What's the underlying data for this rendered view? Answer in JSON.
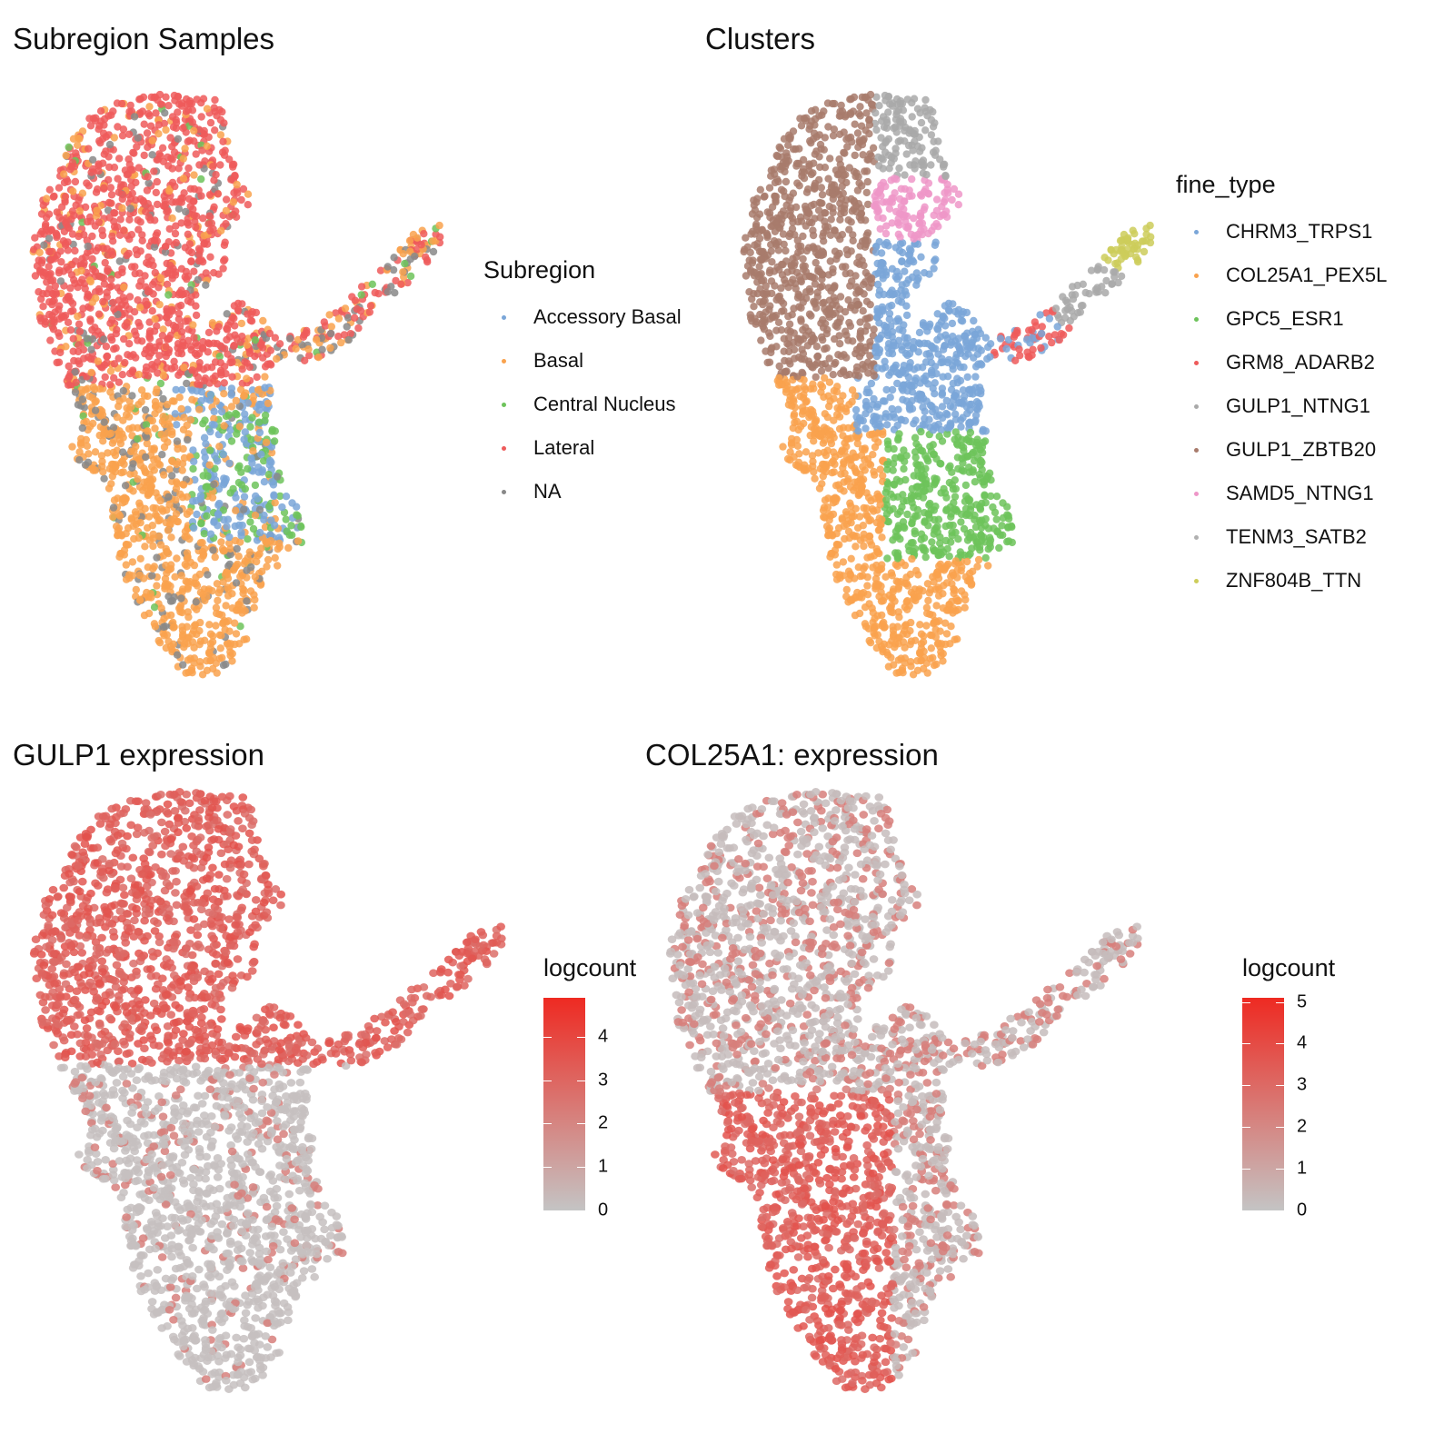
{
  "chart_data": [
    {
      "id": "subregion",
      "type": "scatter",
      "title": "Subregion Samples",
      "legend": {
        "title": "Subregion",
        "placement": "right",
        "entries": [
          {
            "name": "Accessory Basal",
            "color": "#7AA6D8"
          },
          {
            "name": "Basal",
            "color": "#F9A24E"
          },
          {
            "name": "Central Nucleus",
            "color": "#6DC35B"
          },
          {
            "name": "Lateral",
            "color": "#EE5B5B"
          },
          {
            "name": "NA",
            "color": "#888888"
          }
        ]
      }
    },
    {
      "id": "clusters",
      "type": "scatter",
      "title": "Clusters",
      "legend": {
        "title": "fine_type",
        "placement": "right",
        "entries": [
          {
            "name": "CHRM3_TRPS1",
            "color": "#7AA6D8"
          },
          {
            "name": "COL25A1_PEX5L",
            "color": "#F9A24E"
          },
          {
            "name": "GPC5_ESR1",
            "color": "#6DC35B"
          },
          {
            "name": "GRM8_ADARB2",
            "color": "#EE5B5B"
          },
          {
            "name": "GULP1_NTNG1",
            "color": "#A9A9A9"
          },
          {
            "name": "GULP1_ZBTB20",
            "color": "#A87B6C"
          },
          {
            "name": "SAMD5_NTNG1",
            "color": "#EE96C8"
          },
          {
            "name": "TENM3_SATB2",
            "color": "#B0B0B0"
          },
          {
            "name": "ZNF804B_TTN",
            "color": "#CDCD5A"
          }
        ]
      }
    },
    {
      "id": "gulp1",
      "type": "scatter",
      "title": "GULP1 expression",
      "colorbar": {
        "title": "logcount",
        "min": 0,
        "max": 4.9,
        "ticks": [
          "0",
          "1",
          "2",
          "3",
          "4"
        ],
        "low_color": "#C4C4C4",
        "high_color": "#EE2A22"
      }
    },
    {
      "id": "col25a1",
      "type": "scatter",
      "title": "COL25A1: expression",
      "colorbar": {
        "title": "logcount",
        "min": 0,
        "max": 5.1,
        "ticks": [
          "0",
          "1",
          "2",
          "3",
          "4",
          "5"
        ],
        "low_color": "#C4C4C4",
        "high_color": "#EE2A22"
      }
    }
  ]
}
